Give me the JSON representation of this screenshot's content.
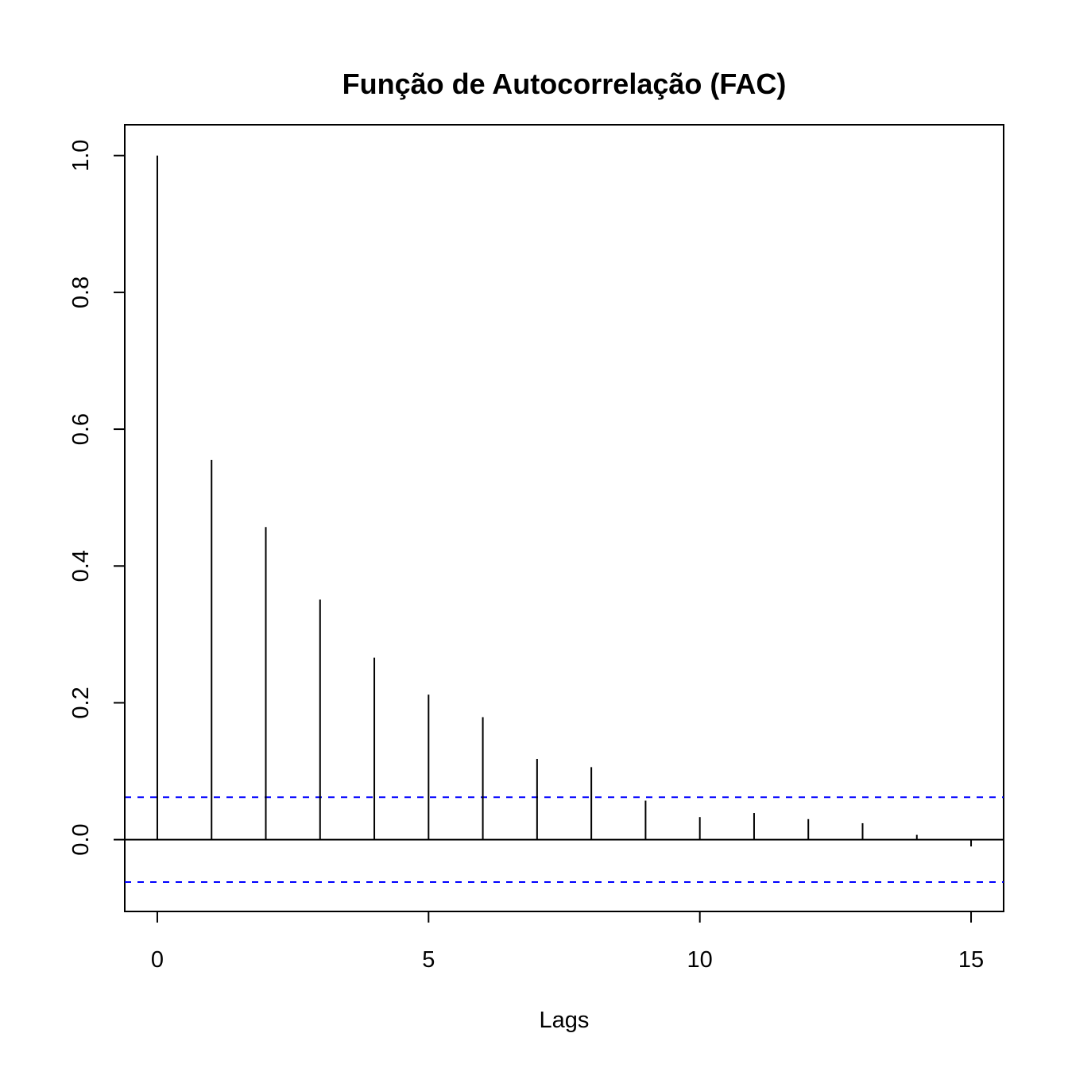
{
  "chart_data": {
    "type": "bar",
    "title": "Função de Autocorrelação (FAC)",
    "xlabel": "Lags",
    "ylabel": "",
    "xlim": [
      -0.6,
      15.6
    ],
    "ylim": [
      -0.105,
      1.045
    ],
    "x_ticks": [
      0,
      5,
      10,
      15
    ],
    "x_tick_labels": [
      "0",
      "5",
      "10",
      "15"
    ],
    "y_ticks": [
      0.0,
      0.2,
      0.4,
      0.6,
      0.8,
      1.0
    ],
    "y_tick_labels": [
      "0.0",
      "0.2",
      "0.4",
      "0.6",
      "0.8",
      "1.0"
    ],
    "series": [
      {
        "x": [
          0,
          1,
          2,
          3,
          4,
          5,
          6,
          7,
          8,
          9,
          10,
          11,
          12,
          13,
          14,
          15
        ],
        "values": [
          1.0,
          0.555,
          0.457,
          0.351,
          0.266,
          0.212,
          0.179,
          0.118,
          0.106,
          0.057,
          0.033,
          0.039,
          0.03,
          0.024,
          0.007,
          -0.01
        ]
      }
    ],
    "confidence_bounds": [
      0.062,
      -0.062
    ],
    "colors": {
      "bars": "#000000",
      "bounds": "#0000ff",
      "frame": "#000000"
    },
    "grid": false
  }
}
